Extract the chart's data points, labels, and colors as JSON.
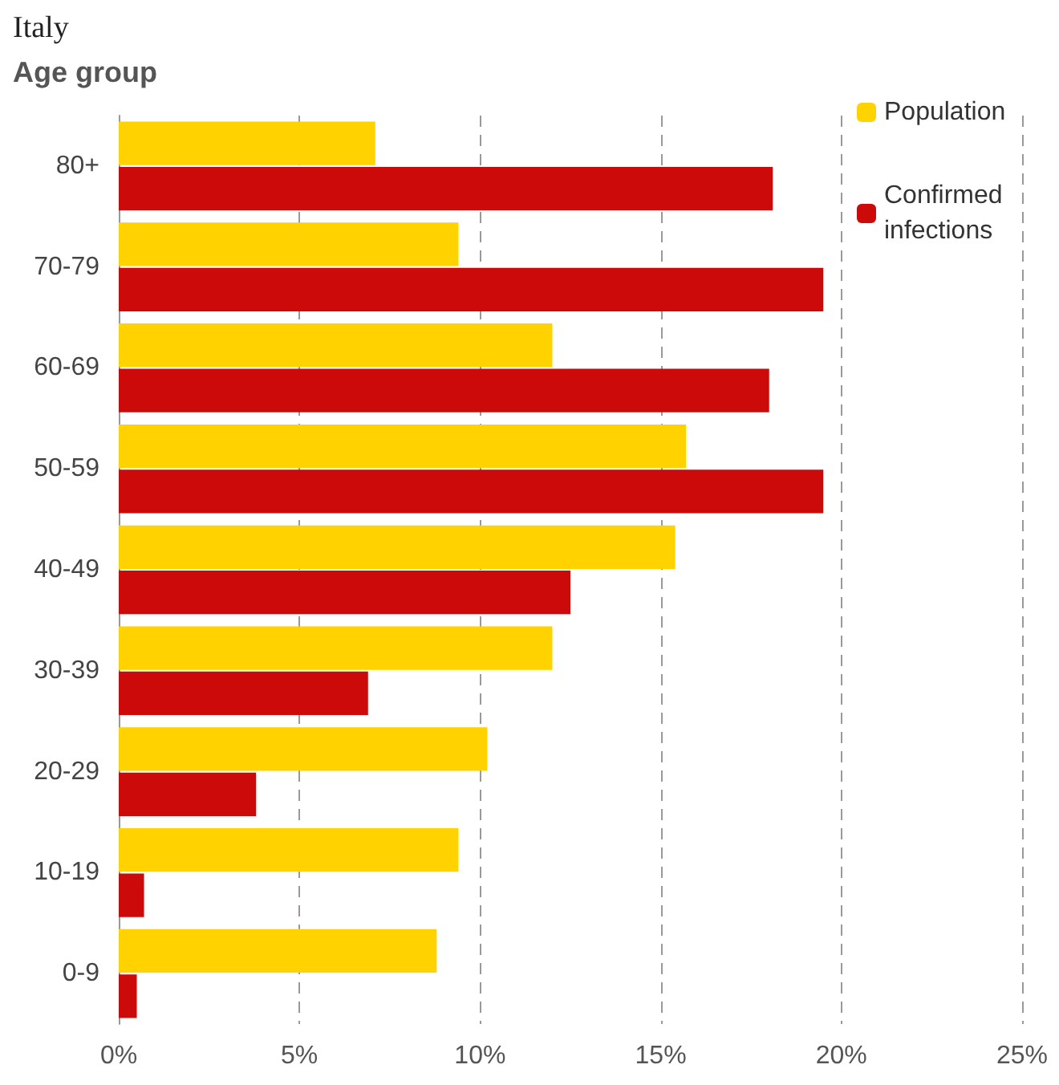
{
  "chart_data": {
    "type": "bar",
    "orientation": "horizontal",
    "title": "Italy",
    "ylabel": "Age group",
    "categories": [
      "80+",
      "70-79",
      "60-69",
      "50-59",
      "40-49",
      "30-39",
      "20-29",
      "10-19",
      "0-9"
    ],
    "series": [
      {
        "name": "Population",
        "color": "#ffd200",
        "values": [
          7.1,
          9.4,
          12.0,
          15.7,
          15.4,
          12.0,
          10.2,
          9.4,
          8.8
        ]
      },
      {
        "name": "Confirmed infections",
        "color": "#cc0a0a",
        "values": [
          18.1,
          19.5,
          18.0,
          19.5,
          12.5,
          6.9,
          3.8,
          0.7,
          0.5
        ]
      }
    ],
    "xlim": [
      0,
      25
    ],
    "xticks": [
      {
        "value": 0,
        "label": "0%"
      },
      {
        "value": 5,
        "label": "5%"
      },
      {
        "value": 10,
        "label": "10%"
      },
      {
        "value": 15,
        "label": "15%"
      },
      {
        "value": 20,
        "label": "20%"
      },
      {
        "value": 25,
        "label": "25%"
      }
    ],
    "grid": "x",
    "legend": "top right"
  }
}
